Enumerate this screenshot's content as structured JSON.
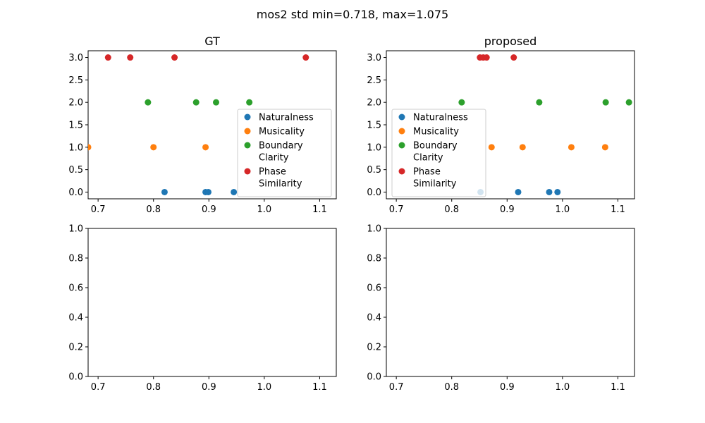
{
  "figure": {
    "suptitle": "mos2 std min=0.718, max=1.075"
  },
  "chart_data": [
    {
      "type": "scatter",
      "title": "GT",
      "xlabel": "",
      "ylabel": "",
      "xlim": [
        0.682,
        1.13
      ],
      "ylim": [
        -0.15,
        3.15
      ],
      "xticks": [
        "0.7",
        "0.8",
        "0.9",
        "1.0",
        "1.1"
      ],
      "yticks": [
        "0.0",
        "0.5",
        "1.0",
        "1.5",
        "2.0",
        "2.5",
        "3.0"
      ],
      "legend": "right",
      "series": [
        {
          "name": "Naturalness",
          "color": "#1f77b4",
          "points": [
            [
              0.82,
              0
            ],
            [
              0.894,
              0
            ],
            [
              0.899,
              0
            ],
            [
              0.945,
              0
            ]
          ]
        },
        {
          "name": "Musicality",
          "color": "#ff7f0e",
          "points": [
            [
              0.682,
              1
            ],
            [
              0.8,
              1
            ],
            [
              0.894,
              1
            ]
          ]
        },
        {
          "name": "Boundary\nClarity",
          "color": "#2ca02c",
          "points": [
            [
              0.79,
              2
            ],
            [
              0.877,
              2
            ],
            [
              0.913,
              2
            ],
            [
              0.973,
              2
            ]
          ]
        },
        {
          "name": "Phase\nSimilarity",
          "color": "#d62728",
          "points": [
            [
              0.718,
              3
            ],
            [
              0.758,
              3
            ],
            [
              0.838,
              3
            ],
            [
              1.075,
              3
            ]
          ]
        }
      ]
    },
    {
      "type": "scatter",
      "title": "proposed",
      "xlabel": "",
      "ylabel": "",
      "xlim": [
        0.682,
        1.13
      ],
      "ylim": [
        -0.15,
        3.15
      ],
      "xticks": [
        "0.7",
        "0.8",
        "0.9",
        "1.0",
        "1.1"
      ],
      "yticks": [
        "0.0",
        "0.5",
        "1.0",
        "1.5",
        "2.0",
        "2.5",
        "3.0"
      ],
      "legend": "left",
      "series": [
        {
          "name": "Naturalness",
          "color": "#1f77b4",
          "points": [
            [
              0.852,
              0
            ],
            [
              0.92,
              0
            ],
            [
              0.976,
              0
            ],
            [
              0.991,
              0
            ]
          ]
        },
        {
          "name": "Musicality",
          "color": "#ff7f0e",
          "points": [
            [
              0.872,
              1
            ],
            [
              0.928,
              1
            ],
            [
              1.016,
              1
            ],
            [
              1.077,
              1
            ]
          ]
        },
        {
          "name": "Boundary\nClarity",
          "color": "#2ca02c",
          "points": [
            [
              0.818,
              2
            ],
            [
              0.958,
              2
            ],
            [
              1.078,
              2
            ],
            [
              1.12,
              2
            ]
          ]
        },
        {
          "name": "Phase\nSimilarity",
          "color": "#d62728",
          "points": [
            [
              0.851,
              3
            ],
            [
              0.857,
              3
            ],
            [
              0.863,
              3
            ],
            [
              0.912,
              3
            ]
          ]
        }
      ]
    },
    {
      "type": "scatter",
      "title": "",
      "xlim": [
        0.682,
        1.13
      ],
      "ylim": [
        0,
        1
      ],
      "xticks": [
        "0.7",
        "0.8",
        "0.9",
        "1.0",
        "1.1"
      ],
      "yticks": [
        "0.0",
        "0.2",
        "0.4",
        "0.6",
        "0.8",
        "1.0"
      ],
      "series": []
    },
    {
      "type": "scatter",
      "title": "",
      "xlim": [
        0.682,
        1.13
      ],
      "ylim": [
        0,
        1
      ],
      "xticks": [
        "0.7",
        "0.8",
        "0.9",
        "1.0",
        "1.1"
      ],
      "yticks": [
        "0.0",
        "0.2",
        "0.4",
        "0.6",
        "0.8",
        "1.0"
      ],
      "series": []
    }
  ]
}
